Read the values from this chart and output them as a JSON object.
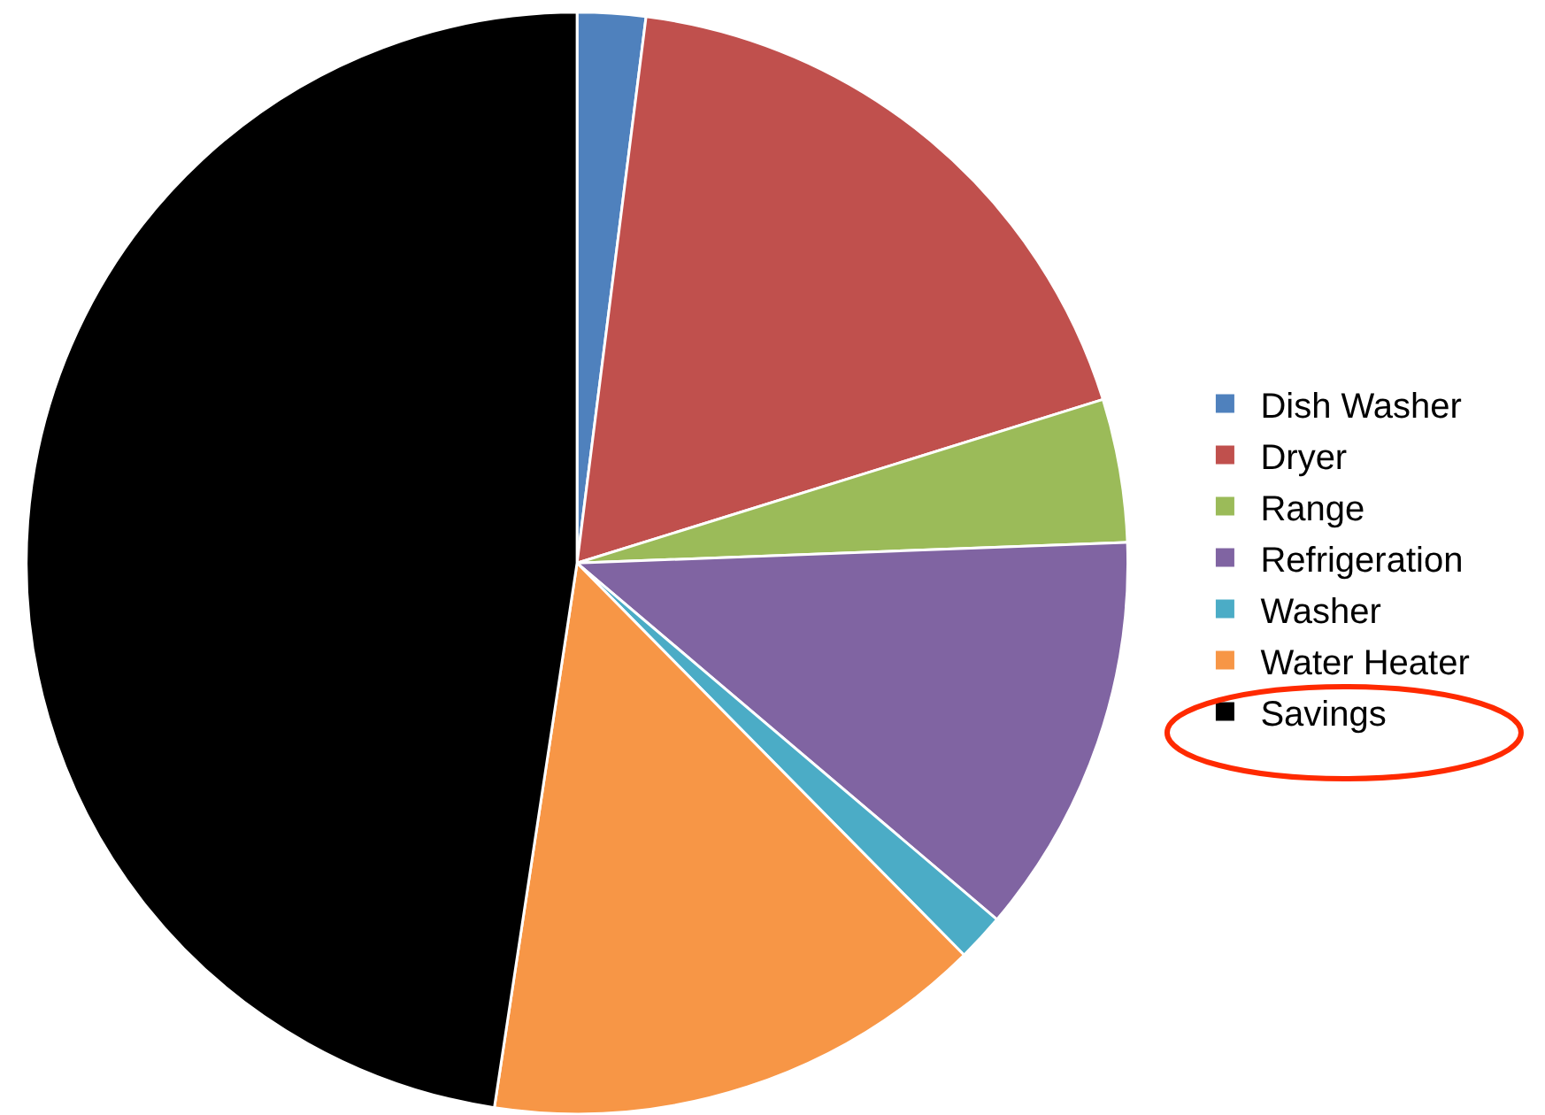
{
  "chart_data": {
    "type": "pie",
    "categories": [
      "Dish Washer",
      "Dryer",
      "Range",
      "Refrigeration",
      "Washer",
      "Water Heater",
      "Savings"
    ],
    "values": [
      2.0,
      18.2,
      4.2,
      11.8,
      1.4,
      14.8,
      47.6
    ],
    "colors": [
      "#4f81bd",
      "#c0504d",
      "#9bbb59",
      "#8064a2",
      "#4bacc6",
      "#f79646",
      "#000000"
    ],
    "legend": "right"
  }
}
